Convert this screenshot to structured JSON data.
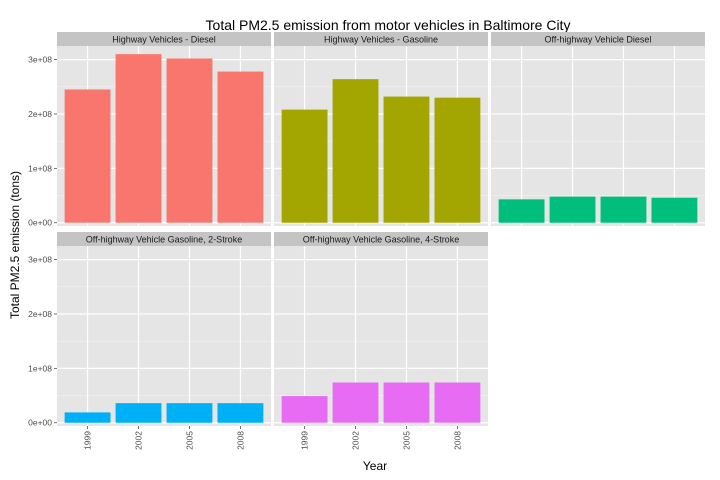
{
  "chart_data": {
    "type": "bar",
    "title": "Total PM2.5 emission from motor vehicles in Baltimore City",
    "xlabel": "Year",
    "ylabel": "Total PM2.5 emission (tons)",
    "categories": [
      "1999",
      "2002",
      "2005",
      "2008"
    ],
    "ylim": [
      -6000000,
      325000000
    ],
    "yticks": [
      0,
      100000000,
      200000000,
      300000000
    ],
    "ytick_labels": [
      "0e+00",
      "1e+08",
      "2e+08",
      "3e+08"
    ],
    "grid": true,
    "legend": "none",
    "facets": [
      {
        "name": "Highway Vehicles - Diesel",
        "color": "#f8766d",
        "values": [
          245000000,
          310000000,
          302000000,
          278000000
        ]
      },
      {
        "name": "Highway Vehicles - Gasoline",
        "color": "#a3a500",
        "values": [
          208000000,
          264000000,
          232000000,
          230000000
        ]
      },
      {
        "name": "Off-highway Vehicle Diesel",
        "color": "#00bf7d",
        "values": [
          43000000,
          48000000,
          48000000,
          46000000
        ]
      },
      {
        "name": "Off-highway Vehicle Gasoline, 2-Stroke",
        "color": "#00b0f6",
        "values": [
          19000000,
          36000000,
          36000000,
          36000000
        ]
      },
      {
        "name": "Off-highway Vehicle Gasoline, 4-Stroke",
        "color": "#e76bf3",
        "values": [
          49000000,
          74000000,
          74000000,
          74000000
        ]
      }
    ]
  }
}
